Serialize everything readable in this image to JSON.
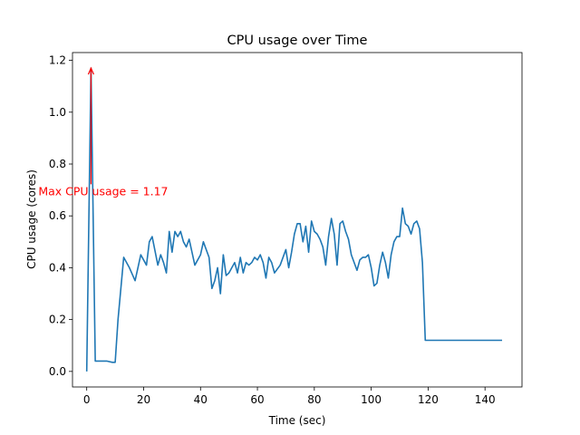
{
  "chart_data": {
    "type": "line",
    "title": "CPU usage over Time",
    "xlabel": "Time (sec)",
    "ylabel": "CPU usage (cores)",
    "xlim": [
      -5,
      153
    ],
    "ylim": [
      -0.06,
      1.23
    ],
    "xticks": [
      0,
      20,
      40,
      60,
      80,
      100,
      120,
      140
    ],
    "yticks": [
      0.0,
      0.2,
      0.4,
      0.6,
      0.8,
      1.0,
      1.2
    ],
    "xtick_labels": [
      "0",
      "20",
      "40",
      "60",
      "80",
      "100",
      "120",
      "140"
    ],
    "ytick_labels": [
      "0.0",
      "0.2",
      "0.4",
      "0.6",
      "0.8",
      "1.0",
      "1.2"
    ],
    "grid": false,
    "line_color": "#1f77b4",
    "annotation": {
      "text": "Max CPU usage = 1.17",
      "color": "#ff0000",
      "point": [
        1.5,
        1.17
      ],
      "text_anchor_point": [
        -17,
        0.68
      ]
    },
    "series": [
      {
        "x": [
          0,
          1.5,
          3,
          5,
          7,
          9,
          10,
          11,
          13,
          15,
          17,
          18,
          19,
          21,
          22,
          23,
          25,
          26,
          27,
          28,
          29,
          30,
          31,
          32,
          33,
          34,
          35,
          36,
          37,
          38,
          40,
          41,
          43,
          44,
          45,
          46,
          47,
          48,
          49,
          50,
          51,
          52,
          53,
          54,
          55,
          56,
          57,
          58,
          59,
          60,
          61,
          62,
          63,
          64,
          65,
          66,
          68,
          70,
          71,
          72,
          73,
          74,
          75,
          76,
          77,
          78,
          79,
          80,
          81,
          82,
          83,
          84,
          85,
          86,
          87,
          88,
          89,
          90,
          91,
          92,
          93,
          95,
          96,
          97,
          98,
          99,
          100,
          101,
          102,
          103,
          104,
          105,
          106,
          107,
          108,
          109,
          110,
          111,
          112,
          113,
          114,
          115,
          116,
          117,
          118,
          119,
          120,
          121,
          122,
          123,
          124,
          125,
          126,
          127,
          128,
          129,
          130,
          131,
          132,
          133,
          134,
          135,
          136,
          137,
          138,
          139,
          140,
          141,
          142,
          143,
          144,
          145,
          146
        ],
        "y": [
          0.0,
          1.17,
          0.04,
          0.04,
          0.04,
          0.035,
          0.035,
          0.2,
          0.44,
          0.4,
          0.35,
          0.4,
          0.45,
          0.41,
          0.5,
          0.52,
          0.41,
          0.45,
          0.42,
          0.38,
          0.54,
          0.46,
          0.54,
          0.52,
          0.54,
          0.5,
          0.48,
          0.51,
          0.46,
          0.41,
          0.45,
          0.5,
          0.44,
          0.32,
          0.35,
          0.4,
          0.3,
          0.45,
          0.37,
          0.38,
          0.4,
          0.42,
          0.38,
          0.44,
          0.38,
          0.42,
          0.41,
          0.42,
          0.44,
          0.43,
          0.45,
          0.42,
          0.36,
          0.44,
          0.42,
          0.38,
          0.41,
          0.47,
          0.4,
          0.46,
          0.53,
          0.57,
          0.57,
          0.5,
          0.56,
          0.46,
          0.58,
          0.54,
          0.53,
          0.51,
          0.48,
          0.41,
          0.52,
          0.59,
          0.53,
          0.41,
          0.57,
          0.58,
          0.54,
          0.51,
          0.45,
          0.39,
          0.43,
          0.44,
          0.44,
          0.45,
          0.4,
          0.33,
          0.34,
          0.41,
          0.46,
          0.42,
          0.36,
          0.45,
          0.5,
          0.52,
          0.52,
          0.63,
          0.57,
          0.56,
          0.53,
          0.57,
          0.58,
          0.55,
          0.42,
          0.12,
          0.12,
          0.12,
          0.12,
          0.12,
          0.12,
          0.12,
          0.12,
          0.12,
          0.12,
          0.12,
          0.12,
          0.12,
          0.12,
          0.12,
          0.12,
          0.12,
          0.12,
          0.12,
          0.12,
          0.12,
          0.12,
          0.12,
          0.12,
          0.12,
          0.12,
          0.12,
          0.12
        ]
      }
    ]
  }
}
